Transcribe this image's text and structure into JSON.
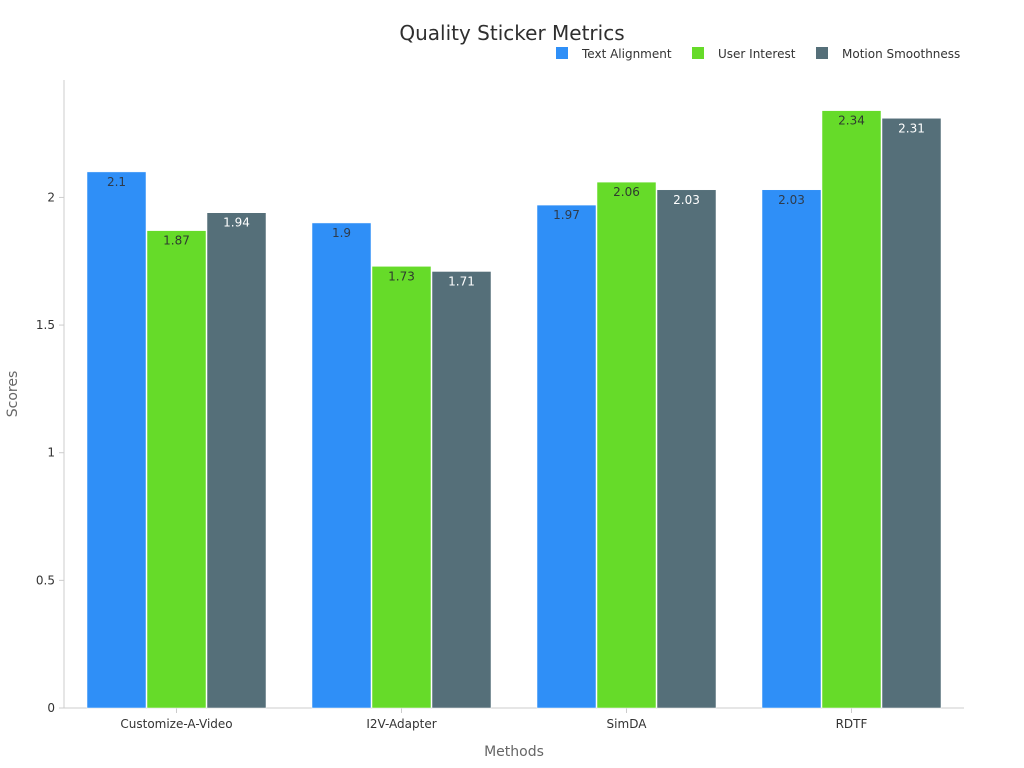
{
  "chart_data": {
    "type": "bar",
    "title": "Quality Sticker Metrics",
    "xlabel": "Methods",
    "ylabel": "Scores",
    "categories": [
      "Customize-A-Video",
      "I2V-Adapter",
      "SimDA",
      "RDTF"
    ],
    "series": [
      {
        "name": "Text Alignment",
        "values": [
          2.1,
          1.9,
          1.97,
          2.03
        ]
      },
      {
        "name": "User Interest",
        "values": [
          1.87,
          1.73,
          2.06,
          2.34
        ]
      },
      {
        "name": "Motion Smoothness",
        "values": [
          1.94,
          1.71,
          2.03,
          2.31
        ]
      }
    ],
    "ylim": [
      0,
      2.46
    ],
    "yticks": [
      "0",
      "0.5",
      "1",
      "1.5",
      "2"
    ],
    "grid": false,
    "legend_position": "top-right"
  },
  "colors": {
    "series": [
      "#2f8ff7",
      "#66db29",
      "#556f79"
    ],
    "label_text": [
      "#2f3b4b",
      "#2f3b2f",
      "#ffffff"
    ],
    "axis": "#cccccc",
    "tick_text": "#333333"
  }
}
